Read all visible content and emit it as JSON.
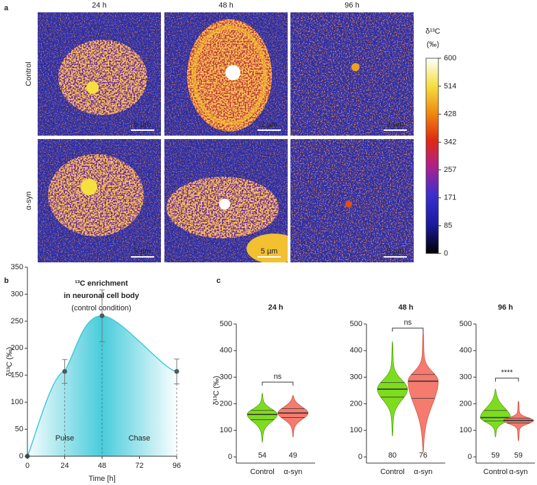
{
  "panel_a": {
    "label": "a",
    "columns": [
      "24 h",
      "48 h",
      "96 h"
    ],
    "rows": [
      "Control",
      "α-syn"
    ],
    "scale_bars": [
      [
        "5 µm",
        "2 µm",
        "2 µm"
      ],
      [
        "5 µm",
        "5 µm",
        "5 µm"
      ]
    ],
    "colorbar": {
      "title": [
        "δ¹³C",
        "(‰)"
      ],
      "lim": [
        0,
        600
      ],
      "ticks": [
        0,
        85,
        171,
        257,
        342,
        428,
        514,
        600
      ]
    }
  },
  "chart_data": [
    {
      "panel": "b",
      "type": "line",
      "title": [
        "¹³C enrichment",
        "in neuronal cell body",
        "(control condition)"
      ],
      "x": [
        0,
        24,
        48,
        96
      ],
      "values": [
        0,
        157,
        260,
        157
      ],
      "errors": [
        null,
        22,
        48,
        23
      ],
      "color": "#3ec9d9",
      "xlim": [
        0,
        96
      ],
      "xticks": [
        0,
        24,
        48,
        72,
        96
      ],
      "ylim": [
        0,
        350
      ],
      "yticks": [
        0,
        50,
        100,
        150,
        200,
        250,
        300,
        350
      ],
      "xlabel": "Time [h]",
      "ylabel": "δ¹³C (‰)",
      "annotations": [
        "Pulse",
        "Chase"
      ]
    },
    {
      "panel": "c",
      "type": "violin",
      "title": "24 h",
      "categories": [
        "Control",
        "α-syn"
      ],
      "colors": [
        "#7edc1e",
        "#f47b6e"
      ],
      "stats": [
        {
          "min": 55,
          "q1": 140,
          "median": 160,
          "q3": 175,
          "max": 240
        },
        {
          "min": 75,
          "q1": 148,
          "median": 165,
          "q3": 182,
          "max": 232
        }
      ],
      "counts": [
        54,
        49
      ],
      "significance": "ns",
      "ylim": [
        0,
        500
      ],
      "yticks": [
        0,
        100,
        200,
        300,
        400,
        500
      ],
      "ylabel": "δ¹³C (‰)"
    },
    {
      "type": "violin",
      "title": "48 h",
      "categories": [
        "Control",
        "α-syn"
      ],
      "colors": [
        "#7edc1e",
        "#f47b6e"
      ],
      "stats": [
        {
          "min": 78,
          "q1": 225,
          "median": 255,
          "q3": 280,
          "max": 435
        },
        {
          "min": 15,
          "q1": 220,
          "median": 285,
          "q3": 310,
          "max": 475
        }
      ],
      "counts": [
        80,
        76
      ],
      "significance": "ns",
      "ylim": [
        0,
        500
      ],
      "yticks": [
        0,
        100,
        200,
        300,
        400,
        500
      ]
    },
    {
      "type": "violin",
      "title": "96 h",
      "categories": [
        "Control",
        "α-syn"
      ],
      "colors": [
        "#7edc1e",
        "#f47b6e"
      ],
      "stats": [
        {
          "min": 75,
          "q1": 135,
          "median": 148,
          "q3": 175,
          "max": 255
        },
        {
          "min": 60,
          "q1": 128,
          "median": 137,
          "q3": 145,
          "max": 210
        }
      ],
      "counts": [
        59,
        59
      ],
      "significance": "****",
      "ylim": [
        0,
        500
      ],
      "yticks": [
        0,
        100,
        200,
        300,
        400,
        500
      ]
    }
  ]
}
